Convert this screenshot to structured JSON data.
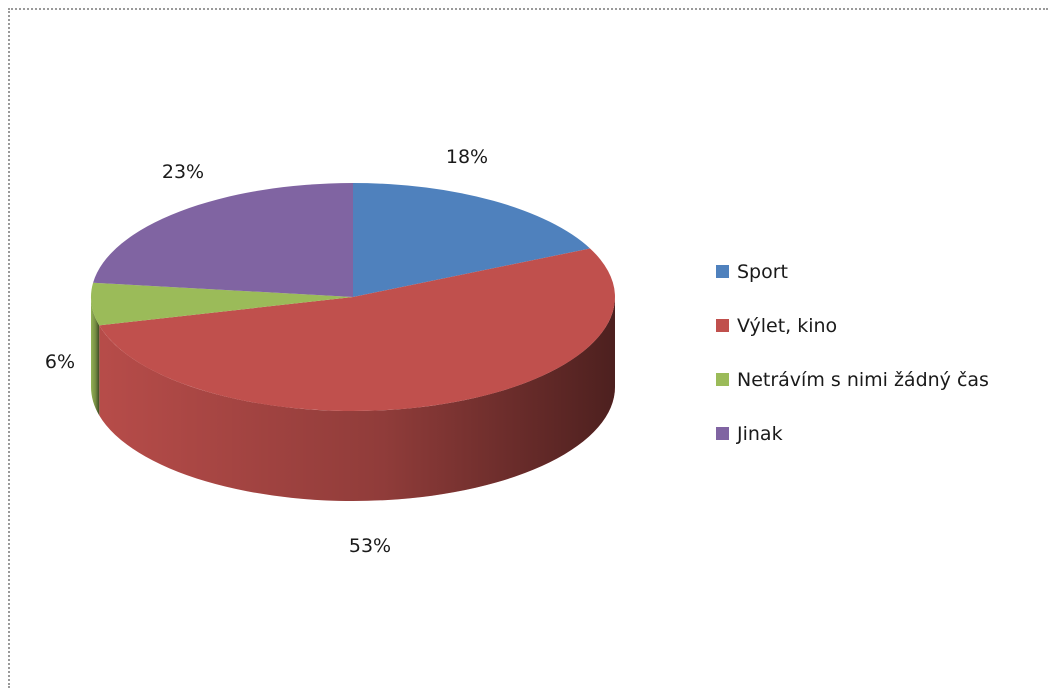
{
  "chart_data": {
    "type": "pie",
    "title": "",
    "categories": [
      "Sport",
      "Výlet, kino",
      "Netrávím s nimi žádný čas",
      "Jinak"
    ],
    "values": [
      18,
      53,
      6,
      23
    ],
    "value_labels": [
      "18%",
      "53%",
      "6%",
      "23%"
    ],
    "colors": [
      "#4f81bd",
      "#c0504d",
      "#9bbb59",
      "#8064a2"
    ],
    "style": "3d",
    "legend_position": "right"
  }
}
